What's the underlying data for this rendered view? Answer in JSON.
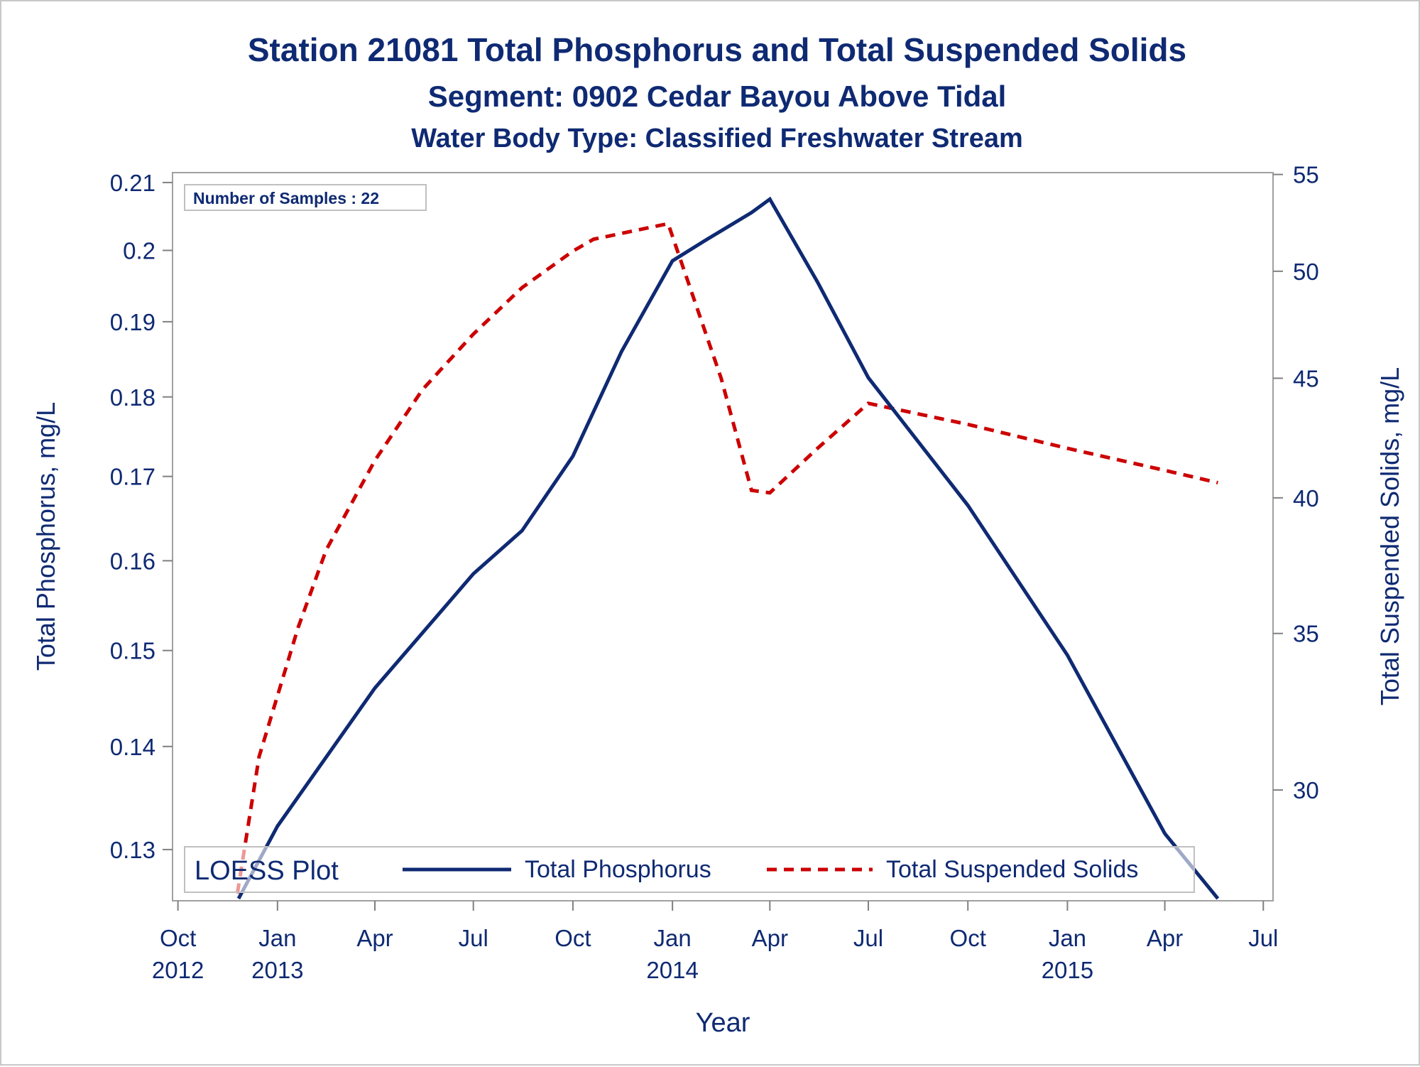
{
  "chart_data": {
    "type": "line",
    "title": "Station 21081  Total Phosphorus and Total Suspended Solids",
    "subtitle": "Segment: 0902  Cedar Bayou Above Tidal",
    "subtitle2": "Water Body Type: Classified Freshwater Stream",
    "xlabel": "Year",
    "ylabel_left": "Total Phosphorus, mg/L",
    "ylabel_right": "Total Suspended Solids, mg/L",
    "annotation": "Number of Samples : 22",
    "legend": {
      "title": "LOESS Plot",
      "placement": "bottom-inside",
      "entries": [
        "Total Phosphorus",
        "Total Suspended Solids"
      ]
    },
    "x_range": [
      "2012-09-26",
      "2015-07-10"
    ],
    "x_ticks": [
      {
        "date": "2012-10-01",
        "month": "Oct",
        "year": "2012"
      },
      {
        "date": "2013-01-01",
        "month": "Jan",
        "year": "2013"
      },
      {
        "date": "2013-04-01",
        "month": "Apr",
        "year": ""
      },
      {
        "date": "2013-07-01",
        "month": "Jul",
        "year": ""
      },
      {
        "date": "2013-10-01",
        "month": "Oct",
        "year": ""
      },
      {
        "date": "2014-01-01",
        "month": "Jan",
        "year": "2014"
      },
      {
        "date": "2014-04-01",
        "month": "Apr",
        "year": ""
      },
      {
        "date": "2014-07-01",
        "month": "Jul",
        "year": ""
      },
      {
        "date": "2014-10-01",
        "month": "Oct",
        "year": ""
      },
      {
        "date": "2015-01-01",
        "month": "Jan",
        "year": "2015"
      },
      {
        "date": "2015-04-01",
        "month": "Apr",
        "year": ""
      },
      {
        "date": "2015-07-01",
        "month": "Jul",
        "year": ""
      }
    ],
    "y_left": {
      "scale": "log",
      "range": [
        0.1253,
        0.2115
      ],
      "ticks": [
        "0.13",
        "0.14",
        "0.15",
        "0.16",
        "0.17",
        "0.18",
        "0.19",
        "0.2",
        "0.21"
      ]
    },
    "y_right": {
      "scale": "log",
      "range": [
        26.9,
        55.1
      ],
      "ticks": [
        "30",
        "35",
        "40",
        "45",
        "50",
        "55"
      ]
    },
    "series": [
      {
        "name": "Total Phosphorus",
        "axis": "left",
        "color": "#0f2a73",
        "style": "solid",
        "points": [
          {
            "x": "2012-11-26",
            "y": 0.1255
          },
          {
            "x": "2013-01-01",
            "y": 0.1322
          },
          {
            "x": "2013-04-01",
            "y": 0.146
          },
          {
            "x": "2013-07-01",
            "y": 0.1585
          },
          {
            "x": "2013-08-15",
            "y": 0.1635
          },
          {
            "x": "2013-10-01",
            "y": 0.1725
          },
          {
            "x": "2013-11-15",
            "y": 0.186
          },
          {
            "x": "2014-01-01",
            "y": 0.1985
          },
          {
            "x": "2014-02-01",
            "y": 0.2015
          },
          {
            "x": "2014-03-15",
            "y": 0.2055
          },
          {
            "x": "2014-04-01",
            "y": 0.2075
          },
          {
            "x": "2014-05-15",
            "y": 0.1955
          },
          {
            "x": "2014-07-01",
            "y": 0.1825
          },
          {
            "x": "2014-10-01",
            "y": 0.1665
          },
          {
            "x": "2015-01-01",
            "y": 0.1495
          },
          {
            "x": "2015-04-01",
            "y": 0.1315
          },
          {
            "x": "2015-05-20",
            "y": 0.1255
          }
        ]
      },
      {
        "name": "Total Suspended Solids",
        "axis": "right",
        "color": "#cc0000",
        "style": "dashed",
        "points": [
          {
            "x": "2012-11-25",
            "y": 27.1
          },
          {
            "x": "2012-12-15",
            "y": 31.0
          },
          {
            "x": "2013-01-20",
            "y": 35.2
          },
          {
            "x": "2013-02-15",
            "y": 38.0
          },
          {
            "x": "2013-04-01",
            "y": 41.5
          },
          {
            "x": "2013-05-15",
            "y": 44.5
          },
          {
            "x": "2013-07-01",
            "y": 47.0
          },
          {
            "x": "2013-08-15",
            "y": 49.2
          },
          {
            "x": "2013-10-01",
            "y": 51.0
          },
          {
            "x": "2013-10-20",
            "y": 51.6
          },
          {
            "x": "2013-12-28",
            "y": 52.4
          },
          {
            "x": "2014-02-15",
            "y": 45.0
          },
          {
            "x": "2014-03-15",
            "y": 40.3
          },
          {
            "x": "2014-04-01",
            "y": 40.2
          },
          {
            "x": "2014-05-15",
            "y": 42.0
          },
          {
            "x": "2014-07-01",
            "y": 43.9
          },
          {
            "x": "2014-10-01",
            "y": 43.0
          },
          {
            "x": "2015-01-01",
            "y": 42.0
          },
          {
            "x": "2015-04-01",
            "y": 41.1
          },
          {
            "x": "2015-05-20",
            "y": 40.6
          }
        ]
      }
    ]
  }
}
